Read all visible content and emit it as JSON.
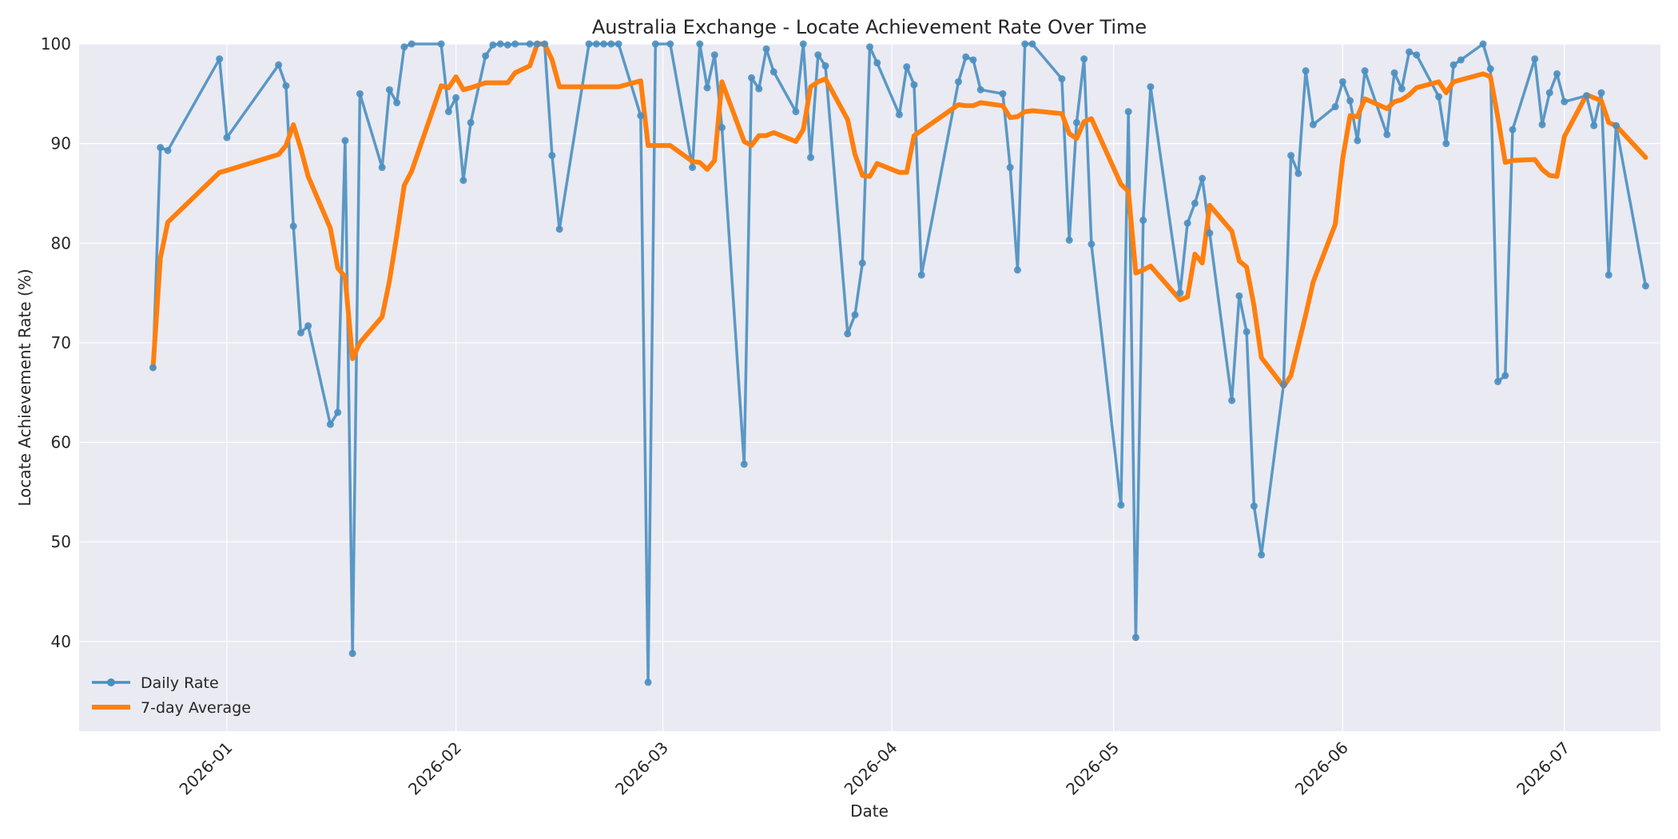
{
  "chart_data": {
    "type": "line",
    "title": "Australia Exchange - Locate Achievement Rate Over Time",
    "xlabel": "Date",
    "ylabel": "Locate Achievement Rate (%)",
    "x_range": [
      "2025-12-12",
      "2026-07-14"
    ],
    "ylim": [
      31,
      100
    ],
    "y_ticks": [
      40,
      50,
      60,
      70,
      80,
      90,
      100
    ],
    "x_ticks": [
      {
        "date": "2026-01-01",
        "label": "2026-01"
      },
      {
        "date": "2026-02-01",
        "label": "2026-02"
      },
      {
        "date": "2026-03-01",
        "label": "2026-03"
      },
      {
        "date": "2026-04-01",
        "label": "2026-04"
      },
      {
        "date": "2026-05-01",
        "label": "2026-05"
      },
      {
        "date": "2026-06-01",
        "label": "2026-06"
      },
      {
        "date": "2026-07-01",
        "label": "2026-07"
      }
    ],
    "grid": true,
    "legend": "bottom-left",
    "colors": {
      "daily": "#4a8fc0",
      "average": "#ff7f0e",
      "plot_bg": "#eaeaf2",
      "grid": "#ffffff"
    },
    "series": [
      {
        "name": "Daily Rate",
        "marker": "circle",
        "points": [
          [
            "2025-12-22",
            67.5
          ],
          [
            "2025-12-23",
            89.6
          ],
          [
            "2025-12-24",
            89.3
          ],
          [
            "2025-12-31",
            98.5
          ],
          [
            "2026-01-01",
            90.6
          ],
          [
            "2026-01-08",
            97.9
          ],
          [
            "2026-01-09",
            95.8
          ],
          [
            "2026-01-10",
            81.7
          ],
          [
            "2026-01-11",
            71.0
          ],
          [
            "2026-01-12",
            71.7
          ],
          [
            "2026-01-15",
            61.8
          ],
          [
            "2026-01-16",
            63.0
          ],
          [
            "2026-01-17",
            90.3
          ],
          [
            "2026-01-18",
            38.8
          ],
          [
            "2026-01-19",
            95.0
          ],
          [
            "2026-01-22",
            87.6
          ],
          [
            "2026-01-23",
            95.4
          ],
          [
            "2026-01-24",
            94.1
          ],
          [
            "2026-01-25",
            99.7
          ],
          [
            "2026-01-26",
            100.0
          ],
          [
            "2026-01-30",
            100.0
          ],
          [
            "2026-01-31",
            93.2
          ],
          [
            "2026-02-01",
            94.6
          ],
          [
            "2026-02-02",
            86.3
          ],
          [
            "2026-02-03",
            92.1
          ],
          [
            "2026-02-05",
            98.8
          ],
          [
            "2026-02-06",
            99.9
          ],
          [
            "2026-02-07",
            100.0
          ],
          [
            "2026-02-08",
            99.9
          ],
          [
            "2026-02-09",
            100.0
          ],
          [
            "2026-02-11",
            100.0
          ],
          [
            "2026-02-12",
            100.0
          ],
          [
            "2026-02-13",
            100.0
          ],
          [
            "2026-02-14",
            88.8
          ],
          [
            "2026-02-15",
            81.4
          ],
          [
            "2026-02-19",
            100.0
          ],
          [
            "2026-02-20",
            100.0
          ],
          [
            "2026-02-21",
            100.0
          ],
          [
            "2026-02-22",
            100.0
          ],
          [
            "2026-02-23",
            100.0
          ],
          [
            "2026-02-26",
            92.8
          ],
          [
            "2026-02-27",
            35.9
          ],
          [
            "2026-02-28",
            100.0
          ],
          [
            "2026-03-02",
            100.0
          ],
          [
            "2026-03-05",
            87.6
          ],
          [
            "2026-03-06",
            100.0
          ],
          [
            "2026-03-07",
            95.6
          ],
          [
            "2026-03-08",
            98.9
          ],
          [
            "2026-03-09",
            91.6
          ],
          [
            "2026-03-12",
            57.8
          ],
          [
            "2026-03-13",
            96.6
          ],
          [
            "2026-03-14",
            95.5
          ],
          [
            "2026-03-15",
            99.5
          ],
          [
            "2026-03-16",
            97.2
          ],
          [
            "2026-03-19",
            93.2
          ],
          [
            "2026-03-20",
            100.0
          ],
          [
            "2026-03-21",
            88.6
          ],
          [
            "2026-03-22",
            98.9
          ],
          [
            "2026-03-23",
            97.8
          ],
          [
            "2026-03-26",
            70.9
          ],
          [
            "2026-03-27",
            72.8
          ],
          [
            "2026-03-28",
            78.0
          ],
          [
            "2026-03-29",
            99.7
          ],
          [
            "2026-03-30",
            98.1
          ],
          [
            "2026-04-02",
            92.9
          ],
          [
            "2026-04-03",
            97.7
          ],
          [
            "2026-04-04",
            95.9
          ],
          [
            "2026-04-05",
            76.8
          ],
          [
            "2026-04-10",
            96.2
          ],
          [
            "2026-04-11",
            98.7
          ],
          [
            "2026-04-12",
            98.4
          ],
          [
            "2026-04-13",
            95.4
          ],
          [
            "2026-04-16",
            95.0
          ],
          [
            "2026-04-17",
            87.6
          ],
          [
            "2026-04-18",
            77.3
          ],
          [
            "2026-04-19",
            100.0
          ],
          [
            "2026-04-20",
            100.0
          ],
          [
            "2026-04-24",
            96.5
          ],
          [
            "2026-04-25",
            80.3
          ],
          [
            "2026-04-26",
            92.1
          ],
          [
            "2026-04-27",
            98.5
          ],
          [
            "2026-04-28",
            79.9
          ],
          [
            "2026-05-02",
            53.7
          ],
          [
            "2026-05-03",
            93.2
          ],
          [
            "2026-05-04",
            40.4
          ],
          [
            "2026-05-05",
            82.3
          ],
          [
            "2026-05-06",
            95.7
          ],
          [
            "2026-05-10",
            75.0
          ],
          [
            "2026-05-11",
            82.0
          ],
          [
            "2026-05-12",
            84.0
          ],
          [
            "2026-05-13",
            86.5
          ],
          [
            "2026-05-14",
            81.0
          ],
          [
            "2026-05-17",
            64.2
          ],
          [
            "2026-05-18",
            74.7
          ],
          [
            "2026-05-19",
            71.1
          ],
          [
            "2026-05-20",
            53.6
          ],
          [
            "2026-05-21",
            48.7
          ],
          [
            "2026-05-24",
            65.8
          ],
          [
            "2026-05-25",
            88.8
          ],
          [
            "2026-05-26",
            87.0
          ],
          [
            "2026-05-27",
            97.3
          ],
          [
            "2026-05-28",
            91.9
          ],
          [
            "2026-05-31",
            93.7
          ],
          [
            "2026-06-01",
            96.2
          ],
          [
            "2026-06-02",
            94.3
          ],
          [
            "2026-06-03",
            90.3
          ],
          [
            "2026-06-04",
            97.3
          ],
          [
            "2026-06-07",
            90.9
          ],
          [
            "2026-06-08",
            97.1
          ],
          [
            "2026-06-09",
            95.5
          ],
          [
            "2026-06-10",
            99.2
          ],
          [
            "2026-06-11",
            98.9
          ],
          [
            "2026-06-14",
            94.7
          ],
          [
            "2026-06-15",
            90.0
          ],
          [
            "2026-06-16",
            97.9
          ],
          [
            "2026-06-17",
            98.4
          ],
          [
            "2026-06-20",
            100.0
          ],
          [
            "2026-06-21",
            97.5
          ],
          [
            "2026-06-22",
            66.1
          ],
          [
            "2026-06-23",
            66.7
          ],
          [
            "2026-06-24",
            91.4
          ],
          [
            "2026-06-27",
            98.5
          ],
          [
            "2026-06-28",
            91.9
          ],
          [
            "2026-06-29",
            95.1
          ],
          [
            "2026-06-30",
            97.0
          ],
          [
            "2026-07-01",
            94.2
          ],
          [
            "2026-07-04",
            94.8
          ],
          [
            "2026-07-05",
            91.8
          ],
          [
            "2026-07-06",
            95.1
          ],
          [
            "2026-07-07",
            76.8
          ],
          [
            "2026-07-08",
            91.8
          ],
          [
            "2026-07-12",
            75.7
          ]
        ]
      },
      {
        "name": "7-day Average",
        "marker": "none",
        "points": [
          [
            "2025-12-22",
            67.5
          ],
          [
            "2025-12-23",
            78.5
          ],
          [
            "2025-12-24",
            82.1
          ],
          [
            "2025-12-31",
            87.1
          ],
          [
            "2026-01-01",
            87.3
          ],
          [
            "2026-01-08",
            88.9
          ],
          [
            "2026-01-09",
            89.8
          ],
          [
            "2026-01-10",
            91.9
          ],
          [
            "2026-01-11",
            89.5
          ],
          [
            "2026-01-12",
            86.7
          ],
          [
            "2026-01-15",
            81.5
          ],
          [
            "2026-01-16",
            77.5
          ],
          [
            "2026-01-17",
            76.6
          ],
          [
            "2026-01-18",
            68.4
          ],
          [
            "2026-01-19",
            70.0
          ],
          [
            "2026-01-22",
            72.6
          ],
          [
            "2026-01-23",
            76.2
          ],
          [
            "2026-01-24",
            80.8
          ],
          [
            "2026-01-25",
            85.8
          ],
          [
            "2026-01-26",
            87.2
          ],
          [
            "2026-01-30",
            95.8
          ],
          [
            "2026-01-31",
            95.6
          ],
          [
            "2026-02-01",
            96.7
          ],
          [
            "2026-02-02",
            95.4
          ],
          [
            "2026-02-03",
            95.6
          ],
          [
            "2026-02-05",
            96.1
          ],
          [
            "2026-02-06",
            96.1
          ],
          [
            "2026-02-07",
            96.1
          ],
          [
            "2026-02-08",
            96.1
          ],
          [
            "2026-02-09",
            97.1
          ],
          [
            "2026-02-11",
            97.8
          ],
          [
            "2026-02-12",
            100.0
          ],
          [
            "2026-02-13",
            100.0
          ],
          [
            "2026-02-14",
            98.4
          ],
          [
            "2026-02-15",
            95.7
          ],
          [
            "2026-02-19",
            95.7
          ],
          [
            "2026-02-20",
            95.7
          ],
          [
            "2026-02-21",
            95.7
          ],
          [
            "2026-02-22",
            95.7
          ],
          [
            "2026-02-23",
            95.7
          ],
          [
            "2026-02-26",
            96.3
          ],
          [
            "2026-02-27",
            89.8
          ],
          [
            "2026-02-28",
            89.8
          ],
          [
            "2026-03-02",
            89.8
          ],
          [
            "2026-03-05",
            88.2
          ],
          [
            "2026-03-06",
            88.1
          ],
          [
            "2026-03-07",
            87.4
          ],
          [
            "2026-03-08",
            88.3
          ],
          [
            "2026-03-09",
            96.2
          ],
          [
            "2026-03-12",
            90.2
          ],
          [
            "2026-03-13",
            89.8
          ],
          [
            "2026-03-14",
            90.8
          ],
          [
            "2026-03-15",
            90.8
          ],
          [
            "2026-03-16",
            91.1
          ],
          [
            "2026-03-19",
            90.2
          ],
          [
            "2026-03-20",
            91.4
          ],
          [
            "2026-03-21",
            95.7
          ],
          [
            "2026-03-22",
            96.2
          ],
          [
            "2026-03-23",
            96.5
          ],
          [
            "2026-03-26",
            92.4
          ],
          [
            "2026-03-27",
            88.9
          ],
          [
            "2026-03-28",
            86.8
          ],
          [
            "2026-03-29",
            86.7
          ],
          [
            "2026-03-30",
            88.0
          ],
          [
            "2026-04-02",
            87.1
          ],
          [
            "2026-04-03",
            87.1
          ],
          [
            "2026-04-04",
            90.8
          ],
          [
            "2026-04-05",
            91.3
          ],
          [
            "2026-04-10",
            93.9
          ],
          [
            "2026-04-11",
            93.8
          ],
          [
            "2026-04-12",
            93.8
          ],
          [
            "2026-04-13",
            94.1
          ],
          [
            "2026-04-16",
            93.8
          ],
          [
            "2026-04-17",
            92.6
          ],
          [
            "2026-04-18",
            92.7
          ],
          [
            "2026-04-19",
            93.2
          ],
          [
            "2026-04-20",
            93.3
          ],
          [
            "2026-04-24",
            93.0
          ],
          [
            "2026-04-25",
            91.0
          ],
          [
            "2026-04-26",
            90.5
          ],
          [
            "2026-04-27",
            92.2
          ],
          [
            "2026-04-28",
            92.5
          ],
          [
            "2026-05-02",
            85.9
          ],
          [
            "2026-05-03",
            85.2
          ],
          [
            "2026-05-04",
            77.0
          ],
          [
            "2026-05-05",
            77.3
          ],
          [
            "2026-05-06",
            77.7
          ],
          [
            "2026-05-10",
            74.3
          ],
          [
            "2026-05-11",
            74.6
          ],
          [
            "2026-05-12",
            78.9
          ],
          [
            "2026-05-13",
            78.0
          ],
          [
            "2026-05-14",
            83.8
          ],
          [
            "2026-05-17",
            81.2
          ],
          [
            "2026-05-18",
            78.2
          ],
          [
            "2026-05-19",
            77.6
          ],
          [
            "2026-05-20",
            73.7
          ],
          [
            "2026-05-21",
            68.5
          ],
          [
            "2026-05-24",
            65.6
          ],
          [
            "2026-05-25",
            66.7
          ],
          [
            "2026-05-26",
            69.8
          ],
          [
            "2026-05-27",
            72.8
          ],
          [
            "2026-05-28",
            76.1
          ],
          [
            "2026-05-31",
            81.9
          ],
          [
            "2026-06-01",
            88.5
          ],
          [
            "2026-06-02",
            92.8
          ],
          [
            "2026-06-03",
            92.7
          ],
          [
            "2026-06-04",
            94.5
          ],
          [
            "2026-06-07",
            93.5
          ],
          [
            "2026-06-08",
            94.2
          ],
          [
            "2026-06-09",
            94.4
          ],
          [
            "2026-06-10",
            94.9
          ],
          [
            "2026-06-11",
            95.6
          ],
          [
            "2026-06-14",
            96.2
          ],
          [
            "2026-06-15",
            95.1
          ],
          [
            "2026-06-16",
            96.2
          ],
          [
            "2026-06-17",
            96.4
          ],
          [
            "2026-06-20",
            97.0
          ],
          [
            "2026-06-21",
            96.7
          ],
          [
            "2026-06-22",
            92.6
          ],
          [
            "2026-06-23",
            88.1
          ],
          [
            "2026-06-24",
            88.3
          ],
          [
            "2026-06-27",
            88.4
          ],
          [
            "2026-06-28",
            87.4
          ],
          [
            "2026-06-29",
            86.8
          ],
          [
            "2026-06-30",
            86.7
          ],
          [
            "2026-07-01",
            90.7
          ],
          [
            "2026-07-04",
            94.9
          ],
          [
            "2026-07-05",
            94.6
          ],
          [
            "2026-07-06",
            94.3
          ],
          [
            "2026-07-07",
            92.1
          ],
          [
            "2026-07-08",
            91.8
          ],
          [
            "2026-07-12",
            88.6
          ]
        ]
      }
    ]
  }
}
